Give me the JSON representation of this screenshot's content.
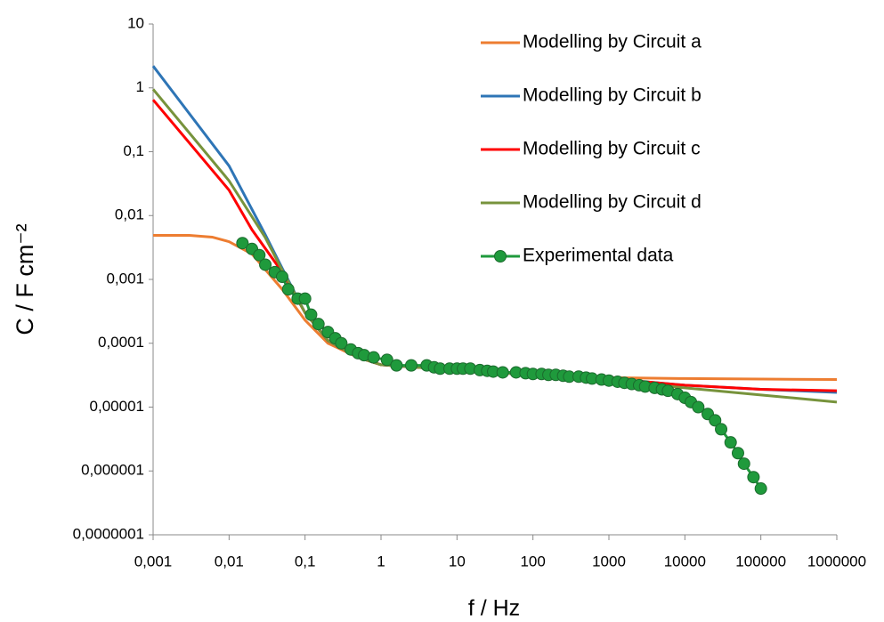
{
  "chart_data": {
    "type": "line",
    "xlabel": "f / Hz",
    "ylabel": "C / F cm⁻²",
    "xscale": "log",
    "yscale": "log",
    "legend": "upper right",
    "xlim": [
      0.001,
      1000000
    ],
    "xticks": [
      {
        "value": 0.001,
        "label": "0,001"
      },
      {
        "value": 0.01,
        "label": "0,01"
      },
      {
        "value": 0.1,
        "label": "0,1"
      },
      1,
      10,
      100,
      1000,
      10000,
      100000,
      1000000
    ],
    "ylim": [
      1e-07,
      10
    ],
    "yticks": [
      {
        "value": 1e-07,
        "label": "0,0000001"
      },
      {
        "value": 1e-06,
        "label": "0,000001"
      },
      {
        "value": 1e-05,
        "label": "0,00001"
      },
      {
        "value": 0.0001,
        "label": "0,0001"
      },
      {
        "value": 0.001,
        "label": "0,001"
      },
      {
        "value": 0.01,
        "label": "0,01"
      },
      {
        "value": 0.1,
        "label": "0,1"
      },
      1,
      10
    ],
    "series": [
      {
        "name": "Modelling by Circuit a",
        "color": "#ed7d31",
        "x": [
          0.001,
          0.003,
          0.006,
          0.01,
          0.02,
          0.05,
          0.1,
          0.2,
          0.5,
          1,
          10,
          100,
          1000,
          10000,
          1000000
        ],
        "values": [
          0.0049,
          0.0049,
          0.0046,
          0.0039,
          0.0025,
          0.0007,
          0.00023,
          0.0001,
          6e-05,
          4.6e-05,
          3.8e-05,
          3.2e-05,
          2.9e-05,
          2.8e-05,
          2.7e-05
        ]
      },
      {
        "name": "Modelling by Circuit b",
        "color": "#2e75b6",
        "x": [
          0.001,
          0.01,
          0.03,
          0.05,
          0.1,
          0.2,
          0.5,
          1,
          10,
          100,
          1000,
          10000,
          100000,
          1000000
        ],
        "values": [
          2.2,
          0.06,
          0.005,
          0.0015,
          0.0003,
          0.00011,
          6e-05,
          4.6e-05,
          3.8e-05,
          3.2e-05,
          2.8e-05,
          2.2e-05,
          1.9e-05,
          1.7e-05
        ]
      },
      {
        "name": "Modelling by Circuit c",
        "color": "#ff0000",
        "x": [
          0.001,
          0.01,
          0.02,
          0.05,
          0.1,
          0.2,
          0.5,
          1,
          10,
          100,
          1000,
          10000,
          100000,
          1000000
        ],
        "values": [
          0.65,
          0.025,
          0.006,
          0.0013,
          0.0003,
          0.00011,
          6e-05,
          4.6e-05,
          3.8e-05,
          3.2e-05,
          2.8e-05,
          2.2e-05,
          1.9e-05,
          1.8e-05
        ]
      },
      {
        "name": "Modelling by Circuit d",
        "color": "#77933c",
        "x": [
          0.001,
          0.01,
          0.03,
          0.05,
          0.1,
          0.2,
          0.5,
          1,
          10,
          100,
          1000,
          10000,
          100000,
          1000000
        ],
        "values": [
          0.95,
          0.035,
          0.0045,
          0.0014,
          0.0003,
          0.00011,
          6e-05,
          4.6e-05,
          3.8e-05,
          3.2e-05,
          2.7e-05,
          2e-05,
          1.55e-05,
          1.2e-05
        ]
      },
      {
        "name": "Experimental data",
        "color": "#1f9a3c",
        "marker": "circle",
        "x": [
          0.015,
          0.02,
          0.025,
          0.03,
          0.04,
          0.05,
          0.06,
          0.08,
          0.1,
          0.12,
          0.15,
          0.2,
          0.25,
          0.3,
          0.4,
          0.5,
          0.6,
          0.8,
          1.2,
          1.6,
          2.5,
          4,
          5,
          6,
          8,
          10,
          12,
          15,
          20,
          25,
          30,
          40,
          60,
          80,
          100,
          130,
          160,
          200,
          250,
          300,
          400,
          500,
          600,
          800,
          1000,
          1300,
          1600,
          2000,
          2500,
          3000,
          4000,
          5000,
          6000,
          8000,
          10000,
          12000,
          15000,
          20000,
          25000,
          30000,
          40000,
          50000,
          60000,
          80000,
          100000
        ],
        "values": [
          0.0037,
          0.003,
          0.0024,
          0.0017,
          0.0013,
          0.0011,
          0.0007,
          0.0005,
          0.0005,
          0.00028,
          0.0002,
          0.00015,
          0.00012,
          0.0001,
          8e-05,
          7e-05,
          6.5e-05,
          6e-05,
          5.5e-05,
          4.5e-05,
          4.5e-05,
          4.5e-05,
          4.2e-05,
          4e-05,
          4e-05,
          4e-05,
          4e-05,
          4e-05,
          3.8e-05,
          3.7e-05,
          3.6e-05,
          3.5e-05,
          3.5e-05,
          3.4e-05,
          3.3e-05,
          3.3e-05,
          3.2e-05,
          3.2e-05,
          3.1e-05,
          3e-05,
          3e-05,
          2.9e-05,
          2.8e-05,
          2.7e-05,
          2.6e-05,
          2.5e-05,
          2.4e-05,
          2.3e-05,
          2.2e-05,
          2.1e-05,
          2e-05,
          1.9e-05,
          1.8e-05,
          1.6e-05,
          1.4e-05,
          1.2e-05,
          1e-05,
          7.8e-06,
          6.2e-06,
          4.5e-06,
          2.8e-06,
          1.9e-06,
          1.3e-06,
          8e-07,
          5.3e-07
        ]
      }
    ]
  }
}
